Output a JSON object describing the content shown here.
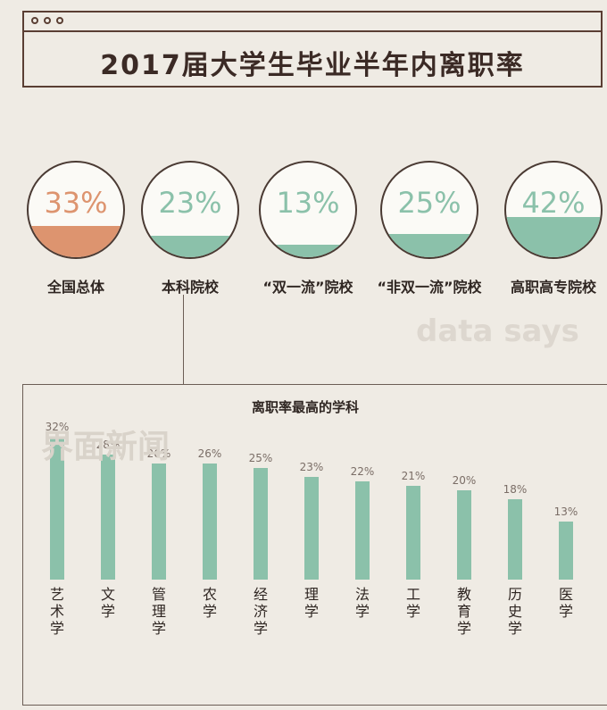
{
  "title": "2017届大学生毕业半年内离职率",
  "colors": {
    "green": "#8bc1aa",
    "orange": "#dd946f",
    "title_border": "#5a3e33"
  },
  "groups": [
    {
      "label": "全国总体",
      "value": 33,
      "text": "33%",
      "color": "#dd946f"
    },
    {
      "label": "本科院校",
      "value": 23,
      "text": "23%",
      "color": "#8bc1aa"
    },
    {
      "label": "“双一流”院校",
      "value": 13,
      "text": "13%",
      "color": "#8bc1aa"
    },
    {
      "label": "“非双一流”院校",
      "value": 25,
      "text": "25%",
      "color": "#8bc1aa"
    },
    {
      "label": "高职高专院校",
      "value": 42,
      "text": "42%",
      "color": "#8bc1aa"
    }
  ],
  "watermarks": {
    "left": "界面新闻",
    "right": "data says"
  },
  "chart_data": {
    "type": "bar",
    "title": "离职率最高的学科",
    "categories": [
      "艺术学",
      "文学",
      "管理学",
      "农学",
      "经济学",
      "理学",
      "法学",
      "工学",
      "教育学",
      "历史学",
      "医学"
    ],
    "values": [
      32,
      28,
      26,
      26,
      25,
      23,
      22,
      21,
      20,
      18,
      13
    ],
    "value_labels": [
      "32%",
      "28%",
      "26%",
      "26%",
      "25%",
      "23%",
      "22%",
      "21%",
      "20%",
      "18%",
      "13%"
    ],
    "ylim": [
      0,
      32
    ],
    "grid": false,
    "legend": "none",
    "bar_color": "#8bc1aa"
  }
}
